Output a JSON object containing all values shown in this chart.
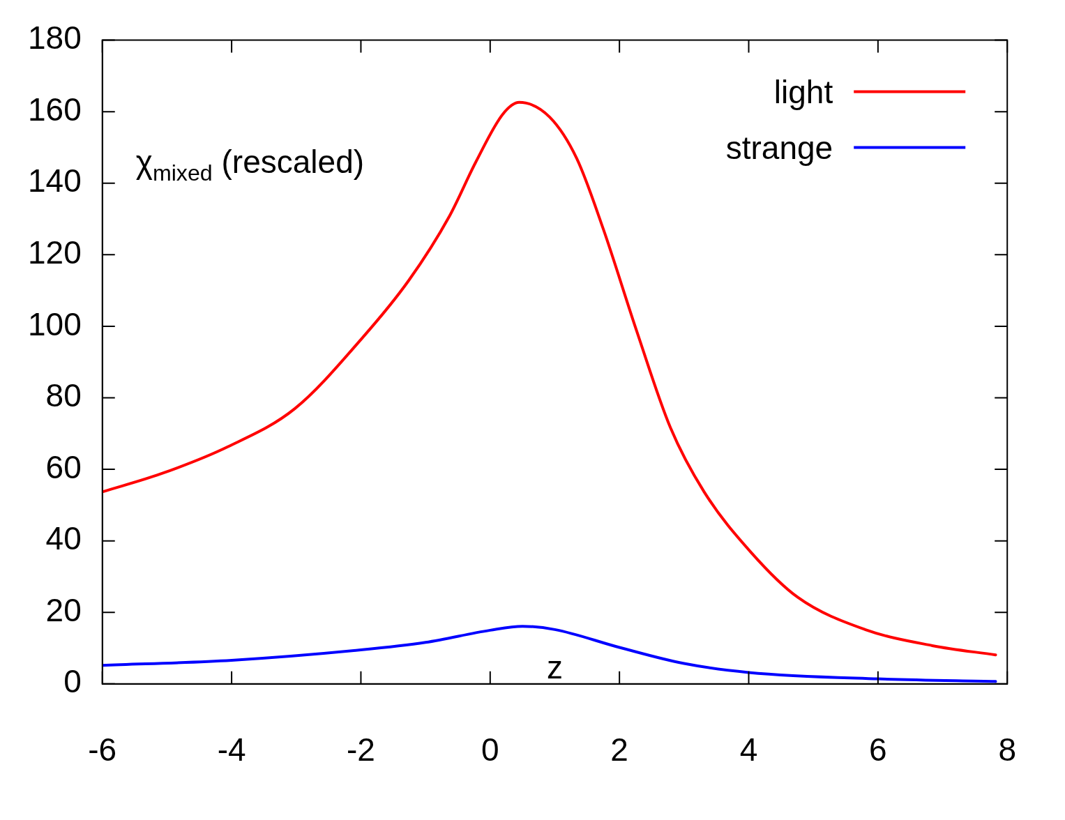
{
  "chart_data": {
    "type": "line",
    "xlabel": "z",
    "annotations": [
      "χ$_{mixed}$ (rescaled)"
    ],
    "xlim": [
      -6,
      8
    ],
    "xticks": [
      -6,
      -4,
      -2,
      0,
      2,
      4,
      6,
      8
    ],
    "ylim": [
      0,
      180
    ],
    "yticks": [
      0,
      20,
      40,
      60,
      80,
      100,
      120,
      140,
      160,
      180
    ],
    "grid": false,
    "legend": "top right",
    "marker": "none",
    "line_style": "solid",
    "series": [
      {
        "name": "light",
        "color": "#ff0000",
        "x": [
          -6,
          -5.1,
          -4.06,
          -3.02,
          -1.98,
          -1.26,
          -0.63,
          -0.22,
          0.2,
          0.45,
          0.92,
          1.34,
          1.75,
          2.27,
          2.79,
          3.31,
          4.04,
          4.76,
          5.8,
          6.84,
          7.82
        ],
        "values": [
          53.7,
          58.7,
          66.3,
          77,
          96.7,
          112.8,
          130.8,
          146,
          159.4,
          162.6,
          158.5,
          146.9,
          127.2,
          98.5,
          71.6,
          53.7,
          36.7,
          24.2,
          15.2,
          10.7,
          8.1
        ]
      },
      {
        "name": "strange",
        "color": "#0000ff",
        "x": [
          -6,
          -4,
          -2,
          -1,
          0,
          0.5,
          1,
          2,
          3,
          4,
          6,
          7.82
        ],
        "values": [
          5.2,
          6.6,
          9.5,
          11.6,
          15,
          16.1,
          15.2,
          10.2,
          5.7,
          3.2,
          1.4,
          0.7
        ]
      }
    ]
  }
}
